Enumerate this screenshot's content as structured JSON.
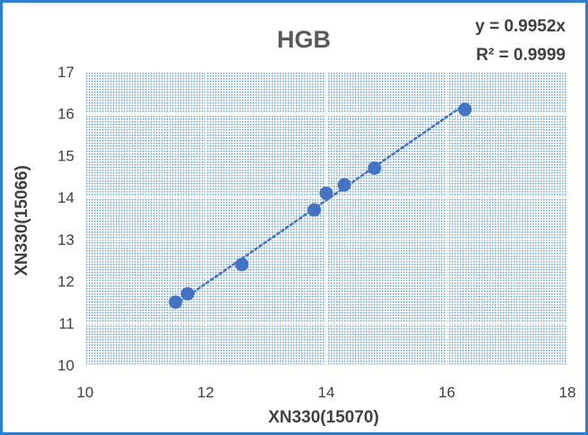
{
  "chart_data": {
    "type": "scatter",
    "title": "HGB",
    "xlabel": "XN330(15070)",
    "ylabel": "XN330(15066)",
    "xlim": [
      10,
      18
    ],
    "ylim": [
      10,
      17
    ],
    "xticks": [
      10,
      12,
      14,
      16,
      18
    ],
    "yticks": [
      10,
      11,
      12,
      13,
      14,
      15,
      16,
      17
    ],
    "grid": true,
    "trendline": {
      "type": "linear-through-origin",
      "slope": 0.9952,
      "equation_label": "y = 0.9952x",
      "r2_label": "R² = 0.9999",
      "style": "dotted"
    },
    "series": [
      {
        "x": [
          11.5,
          11.7,
          12.6,
          13.8,
          14.0,
          14.3,
          14.8,
          16.3
        ],
        "y": [
          11.5,
          11.7,
          12.4,
          13.7,
          14.1,
          14.3,
          14.7,
          16.1
        ]
      }
    ],
    "colors": {
      "marker": "#4472c4",
      "trendline": "#4472c4",
      "frame": "#2f7fd0",
      "plot_pattern": "#5b9bd5"
    }
  }
}
